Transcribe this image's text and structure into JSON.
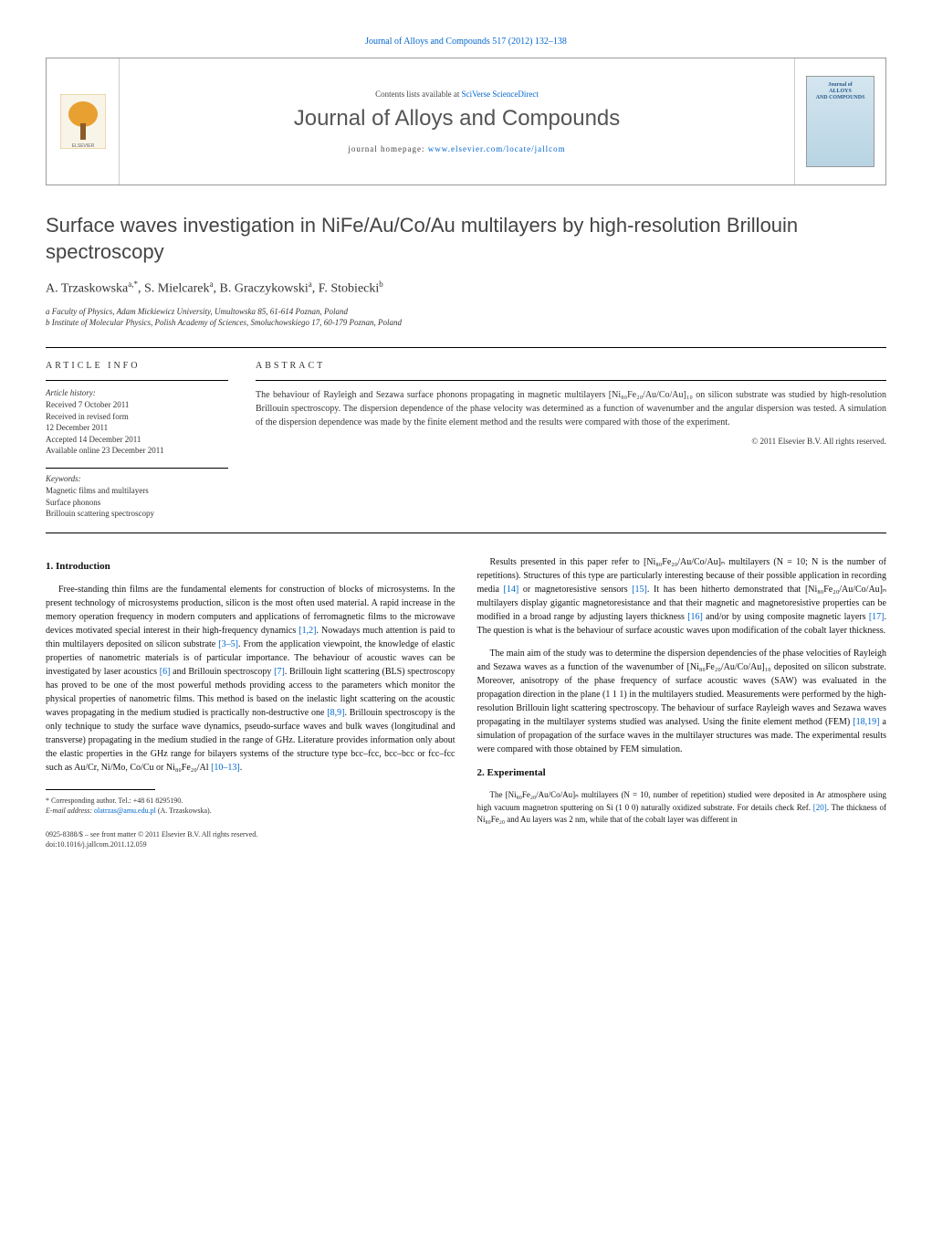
{
  "top_ref": "Journal of Alloys and Compounds 517 (2012) 132–138",
  "header": {
    "contents_prefix": "Contents lists available at ",
    "contents_link": "SciVerse ScienceDirect",
    "journal_name": "Journal of Alloys and Compounds",
    "homepage_prefix": "journal homepage: ",
    "homepage_link": "www.elsevier.com/locate/jallcom",
    "cover_label_top": "Journal of",
    "cover_label_main": "ALLOYS\nAND COMPOUNDS"
  },
  "title": "Surface waves investigation in NiFe/Au/Co/Au multilayers by high-resolution Brillouin spectroscopy",
  "authors_html": "A. Trzaskowska<sup>a,*</sup>, S. Mielcarek<sup>a</sup>, B. Graczykowski<sup>a</sup>, F. Stobiecki<sup>b</sup>",
  "affiliations": [
    "a Faculty of Physics, Adam Mickiewicz University, Umultowska 85, 61-614 Poznan, Poland",
    "b Institute of Molecular Physics, Polish Academy of Sciences, Smoluchowskiego 17, 60-179 Poznan, Poland"
  ],
  "article_info": {
    "heading": "ARTICLE INFO",
    "history_label": "Article history:",
    "history": [
      "Received 7 October 2011",
      "Received in revised form",
      "12 December 2011",
      "Accepted 14 December 2011",
      "Available online 23 December 2011"
    ],
    "keywords_label": "Keywords:",
    "keywords": [
      "Magnetic films and multilayers",
      "Surface phonons",
      "Brillouin scattering spectroscopy"
    ]
  },
  "abstract": {
    "heading": "ABSTRACT",
    "text": "The behaviour of Rayleigh and Sezawa surface phonons propagating in magnetic multilayers [Ni₈₀Fe₂₀/Au/Co/Au]₁₀ on silicon substrate was studied by high-resolution Brillouin spectroscopy. The dispersion dependence of the phase velocity was determined as a function of wavenumber and the angular dispersion was tested. A simulation of the dispersion dependence was made by the finite element method and the results were compared with those of the experiment.",
    "copyright": "© 2011 Elsevier B.V. All rights reserved."
  },
  "sections": {
    "intro_heading": "1. Introduction",
    "intro_p1": "Free-standing thin films are the fundamental elements for construction of blocks of microsystems. In the present technology of microsystems production, silicon is the most often used material. A rapid increase in the memory operation frequency in modern computers and applications of ferromagnetic films to the microwave devices motivated special interest in their high-frequency dynamics [1,2]. Nowadays much attention is paid to thin multilayers deposited on silicon substrate [3–5]. From the application viewpoint, the knowledge of elastic properties of nanometric materials is of particular importance. The behaviour of acoustic waves can be investigated by laser acoustics [6] and Brillouin spectroscopy [7]. Brillouin light scattering (BLS) spectroscopy has proved to be one of the most powerful methods providing access to the parameters which monitor the physical properties of nanometric films. This method is based on the inelastic light scattering on the acoustic waves propagating in the medium studied is practically non-destructive one [8,9]. Brillouin spectroscopy is the only technique to study the surface wave dynamics, pseudo-surface waves and bulk waves (longitudinal and transverse) propagating in the medium studied in the range of GHz. Literature provides information only about the elastic properties in the GHz range for bilayers systems of the structure type bcc–fcc, bcc–bcc or fcc–fcc such as Au/Cr, Ni/Mo, Co/Cu or Ni₈₀Fe₂₀/Al [10–13].",
    "right_p1": "Results presented in this paper refer to [Ni₈₀Fe₂₀/Au/Co/Au]ₙ multilayers (N = 10; N is the number of repetitions). Structures of this type are particularly interesting because of their possible application in recording media [14] or magnetoresistive sensors [15]. It has been hitherto demonstrated that [Ni₈₀Fe₂₀/Au/Co/Au]ₙ multilayers display gigantic magnetoresistance and that their magnetic and magnetoresistive properties can be modified in a broad range by adjusting layers thickness [16] and/or by using composite magnetic layers [17]. The question is what is the behaviour of surface acoustic waves upon modification of the cobalt layer thickness.",
    "right_p2": "The main aim of the study was to determine the dispersion dependencies of the phase velocities of Rayleigh and Sezawa waves as a function of the wavenumber of [Ni₈₀Fe₂₀/Au/Co/Au]₁₀ deposited on silicon substrate. Moreover, anisotropy of the phase frequency of surface acoustic waves (SAW) was evaluated in the propagation direction in the plane (1 1 1) in the multilayers studied. Measurements were performed by the high-resolution Brillouin light scattering spectroscopy. The behaviour of surface Rayleigh waves and Sezawa waves propagating in the multilayer systems studied was analysed. Using the finite element method (FEM) [18,19] a simulation of propagation of the surface waves in the multilayer structures was made. The experimental results were compared with those obtained by FEM simulation.",
    "exp_heading": "2. Experimental",
    "exp_p1": "The [Ni₈₀Fe₂₀/Au/Co/Au]ₙ multilayers (N = 10, number of repetition) studied were deposited in Ar atmosphere using high vacuum magnetron sputtering on Si (1 0 0) naturally oxidized substrate. For details check Ref. [20]. The thickness of Ni₈₀Fe₂₀ and Au layers was 2 nm, while that of the cobalt layer was different in"
  },
  "footnote": {
    "corr": "* Corresponding author. Tel.: +48 61 8295190.",
    "email_label": "E-mail address: ",
    "email": "olatrzas@amu.edu.pl",
    "email_suffix": " (A. Trzaskowska)."
  },
  "doi": {
    "line1": "0925-8388/$ – see front matter © 2011 Elsevier B.V. All rights reserved.",
    "line2": "doi:10.1016/j.jallcom.2011.12.059"
  },
  "colors": {
    "link": "#0066cc",
    "text": "#111111",
    "heading_gray": "#555555",
    "border": "#999999"
  }
}
